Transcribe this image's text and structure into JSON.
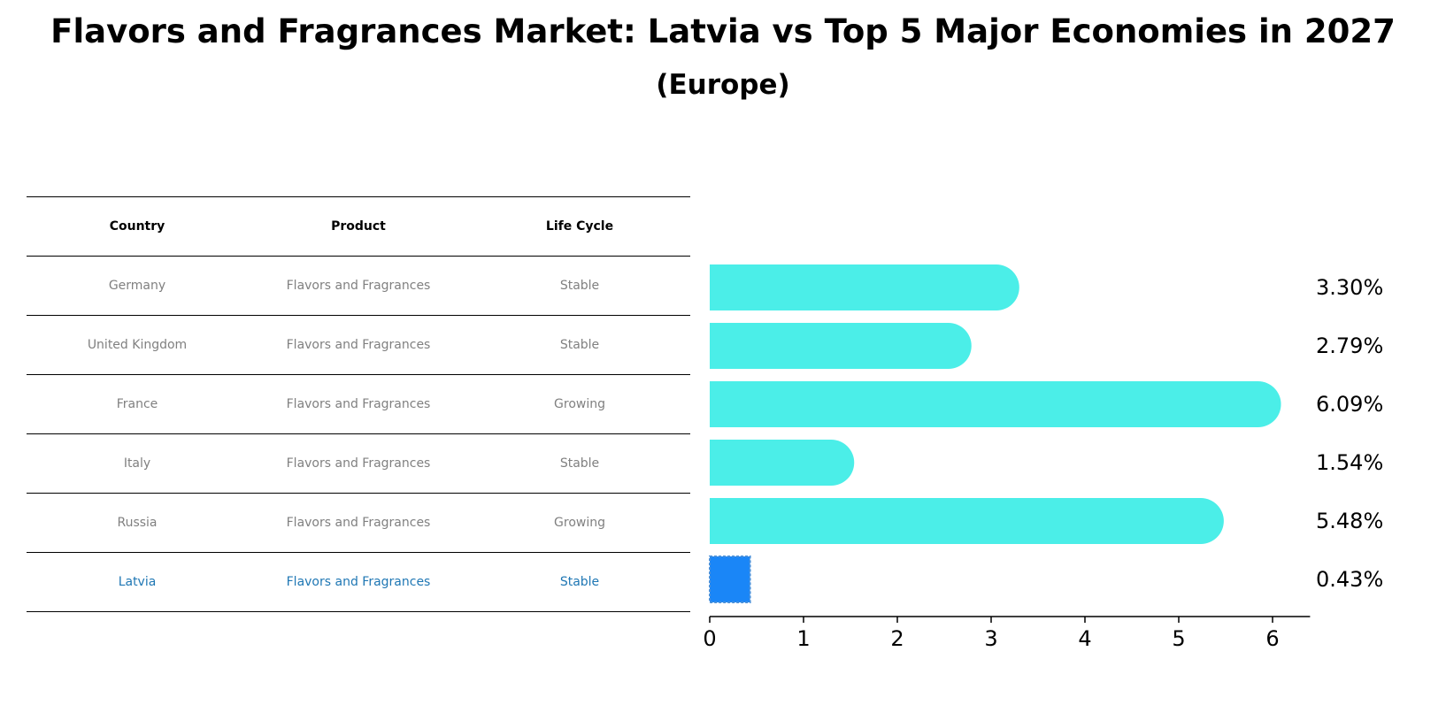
{
  "title": "Flavors and Fragrances Market: Latvia vs Top 5 Major Economies in 2027",
  "subtitle": "(Europe)",
  "table": {
    "headers": [
      "Country",
      "Product",
      "Life Cycle"
    ],
    "rows": [
      {
        "country": "Germany",
        "product": "Flavors and Fragrances",
        "life_cycle": "Stable"
      },
      {
        "country": "United Kingdom",
        "product": "Flavors and Fragrances",
        "life_cycle": "Stable"
      },
      {
        "country": "France",
        "product": "Flavors and Fragrances",
        "life_cycle": "Growing"
      },
      {
        "country": "Italy",
        "product": "Flavors and Fragrances",
        "life_cycle": "Stable"
      },
      {
        "country": "Russia",
        "product": "Flavors and Fragrances",
        "life_cycle": "Growing"
      },
      {
        "country": "Latvia",
        "product": "Flavors and Fragrances",
        "life_cycle": "Stable"
      }
    ],
    "highlight_color": "#1f77b4",
    "text_color": "#808080"
  },
  "chart_data": {
    "type": "bar",
    "orientation": "horizontal",
    "categories": [
      "Germany",
      "United Kingdom",
      "France",
      "Italy",
      "Russia",
      "Latvia"
    ],
    "values": [
      3.3,
      2.79,
      6.09,
      1.54,
      5.48,
      0.43
    ],
    "value_labels": [
      "3.30%",
      "2.79%",
      "6.09%",
      "1.54%",
      "5.48%",
      "0.43%"
    ],
    "xlim": [
      0,
      6.4
    ],
    "xticks": [
      "0",
      "1",
      "2",
      "3",
      "4",
      "5",
      "6"
    ],
    "bar_color": "#4beee8",
    "highlight_color": "#1a86f7",
    "highlight_index": 5,
    "grid": false,
    "legend": false
  }
}
